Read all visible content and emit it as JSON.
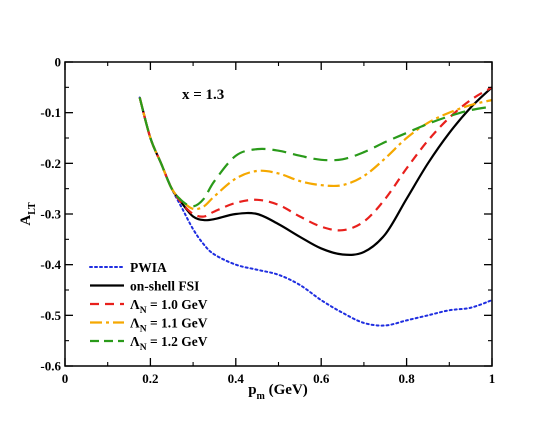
{
  "chart_data": {
    "type": "line",
    "title": "",
    "annotation": "x = 1.3",
    "xlabel": {
      "main": "p",
      "sub": "m",
      "unit": " (GeV)"
    },
    "ylabel": {
      "main": "A",
      "sub": "LT"
    },
    "xlim": [
      0,
      1
    ],
    "ylim": [
      -0.6,
      0
    ],
    "xticks": [
      0,
      0.2,
      0.4,
      0.6,
      0.8,
      1
    ],
    "xtick_labels": [
      "0",
      "0.2",
      "0.4",
      "0.6",
      "0.8",
      "1"
    ],
    "yticks": [
      0,
      -0.1,
      -0.2,
      -0.3,
      -0.4,
      -0.5,
      -0.6
    ],
    "ytick_labels": [
      "0",
      "-0.1",
      "-0.2",
      "-0.3",
      "-0.4",
      "-0.5",
      "-0.6"
    ],
    "grid": false,
    "legend_position": "bottom-left",
    "series": [
      {
        "id": "pwia",
        "legend": {
          "main": "PWIA",
          "sub": "",
          "tail": ""
        },
        "color": "#1f2ee0",
        "style": "dotted",
        "points": [
          [
            0.175,
            -0.07
          ],
          [
            0.2,
            -0.15
          ],
          [
            0.225,
            -0.2
          ],
          [
            0.25,
            -0.25
          ],
          [
            0.275,
            -0.29
          ],
          [
            0.3,
            -0.33
          ],
          [
            0.325,
            -0.36
          ],
          [
            0.35,
            -0.38
          ],
          [
            0.4,
            -0.4
          ],
          [
            0.45,
            -0.41
          ],
          [
            0.5,
            -0.42
          ],
          [
            0.55,
            -0.44
          ],
          [
            0.6,
            -0.47
          ],
          [
            0.65,
            -0.495
          ],
          [
            0.7,
            -0.515
          ],
          [
            0.75,
            -0.52
          ],
          [
            0.8,
            -0.51
          ],
          [
            0.85,
            -0.5
          ],
          [
            0.9,
            -0.49
          ],
          [
            0.95,
            -0.485
          ],
          [
            1.0,
            -0.47
          ]
        ]
      },
      {
        "id": "onshell",
        "legend": {
          "main": "on-shell FSI",
          "sub": "",
          "tail": ""
        },
        "color": "#000000",
        "style": "solid",
        "points": [
          [
            0.175,
            -0.07
          ],
          [
            0.2,
            -0.15
          ],
          [
            0.225,
            -0.2
          ],
          [
            0.25,
            -0.25
          ],
          [
            0.275,
            -0.28
          ],
          [
            0.3,
            -0.305
          ],
          [
            0.325,
            -0.312
          ],
          [
            0.35,
            -0.31
          ],
          [
            0.4,
            -0.3
          ],
          [
            0.45,
            -0.3
          ],
          [
            0.5,
            -0.32
          ],
          [
            0.55,
            -0.345
          ],
          [
            0.6,
            -0.368
          ],
          [
            0.65,
            -0.38
          ],
          [
            0.7,
            -0.375
          ],
          [
            0.75,
            -0.34
          ],
          [
            0.8,
            -0.27
          ],
          [
            0.85,
            -0.2
          ],
          [
            0.9,
            -0.14
          ],
          [
            0.95,
            -0.09
          ],
          [
            1.0,
            -0.05
          ]
        ]
      },
      {
        "id": "lambda10",
        "legend": {
          "main": "Λ",
          "sub": "N",
          "tail": " = 1.0 GeV"
        },
        "color": "#e8201c",
        "style": "dashed",
        "points": [
          [
            0.175,
            -0.07
          ],
          [
            0.2,
            -0.15
          ],
          [
            0.225,
            -0.2
          ],
          [
            0.25,
            -0.25
          ],
          [
            0.275,
            -0.28
          ],
          [
            0.3,
            -0.3
          ],
          [
            0.325,
            -0.305
          ],
          [
            0.35,
            -0.295
          ],
          [
            0.4,
            -0.278
          ],
          [
            0.45,
            -0.272
          ],
          [
            0.5,
            -0.282
          ],
          [
            0.55,
            -0.305
          ],
          [
            0.6,
            -0.325
          ],
          [
            0.65,
            -0.332
          ],
          [
            0.7,
            -0.315
          ],
          [
            0.75,
            -0.27
          ],
          [
            0.8,
            -0.21
          ],
          [
            0.85,
            -0.155
          ],
          [
            0.9,
            -0.11
          ],
          [
            0.95,
            -0.075
          ],
          [
            1.0,
            -0.05
          ]
        ]
      },
      {
        "id": "lambda11",
        "legend": {
          "main": "Λ",
          "sub": "N",
          "tail": " = 1.1 GeV"
        },
        "color": "#f5a800",
        "style": "dashdot",
        "points": [
          [
            0.175,
            -0.07
          ],
          [
            0.2,
            -0.15
          ],
          [
            0.225,
            -0.2
          ],
          [
            0.25,
            -0.25
          ],
          [
            0.275,
            -0.275
          ],
          [
            0.3,
            -0.29
          ],
          [
            0.325,
            -0.285
          ],
          [
            0.35,
            -0.265
          ],
          [
            0.4,
            -0.23
          ],
          [
            0.45,
            -0.215
          ],
          [
            0.5,
            -0.22
          ],
          [
            0.55,
            -0.235
          ],
          [
            0.6,
            -0.243
          ],
          [
            0.65,
            -0.243
          ],
          [
            0.7,
            -0.225
          ],
          [
            0.75,
            -0.19
          ],
          [
            0.8,
            -0.15
          ],
          [
            0.85,
            -0.12
          ],
          [
            0.9,
            -0.1
          ],
          [
            0.95,
            -0.085
          ],
          [
            1.0,
            -0.075
          ]
        ]
      },
      {
        "id": "lambda12",
        "legend": {
          "main": "Λ",
          "sub": "N",
          "tail": " = 1.2 GeV"
        },
        "color": "#2a9a1a",
        "style": "longdash",
        "points": [
          [
            0.175,
            -0.07
          ],
          [
            0.2,
            -0.15
          ],
          [
            0.225,
            -0.2
          ],
          [
            0.25,
            -0.25
          ],
          [
            0.275,
            -0.275
          ],
          [
            0.3,
            -0.285
          ],
          [
            0.325,
            -0.27
          ],
          [
            0.35,
            -0.235
          ],
          [
            0.4,
            -0.185
          ],
          [
            0.45,
            -0.172
          ],
          [
            0.5,
            -0.175
          ],
          [
            0.55,
            -0.185
          ],
          [
            0.6,
            -0.193
          ],
          [
            0.65,
            -0.192
          ],
          [
            0.7,
            -0.178
          ],
          [
            0.75,
            -0.158
          ],
          [
            0.8,
            -0.14
          ],
          [
            0.85,
            -0.122
          ],
          [
            0.9,
            -0.107
          ],
          [
            0.95,
            -0.095
          ],
          [
            1.0,
            -0.088
          ]
        ]
      }
    ]
  }
}
